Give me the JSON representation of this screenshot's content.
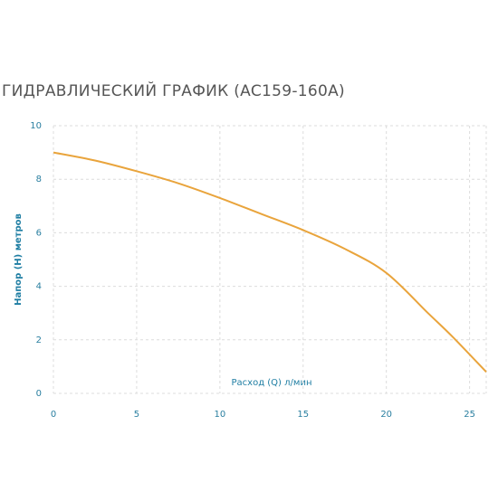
{
  "chart_data": {
    "type": "line",
    "title": "ГИДРАВЛИЧЕСКИЙ ГРАФИК (AC159-160A)",
    "x_label": "Расход (Q) л/мин",
    "y_label": "Напор (H) метров",
    "x": [
      0,
      2.5,
      5,
      7.5,
      10,
      12.5,
      15,
      17.5,
      20,
      22.5,
      24,
      26
    ],
    "series": [
      {
        "name": "AC159-160A",
        "color": "#e9a43c",
        "values": [
          9,
          8.7,
          8.3,
          7.85,
          7.3,
          6.7,
          6.1,
          5.4,
          4.5,
          3.0,
          2.1,
          0.8
        ]
      }
    ],
    "xlim": [
      0,
      26
    ],
    "xticks": [
      0,
      5,
      10,
      15,
      20,
      25
    ],
    "ylim": [
      0,
      10
    ],
    "yticks": [
      0,
      2,
      4,
      6,
      8,
      10
    ],
    "grid": true
  }
}
